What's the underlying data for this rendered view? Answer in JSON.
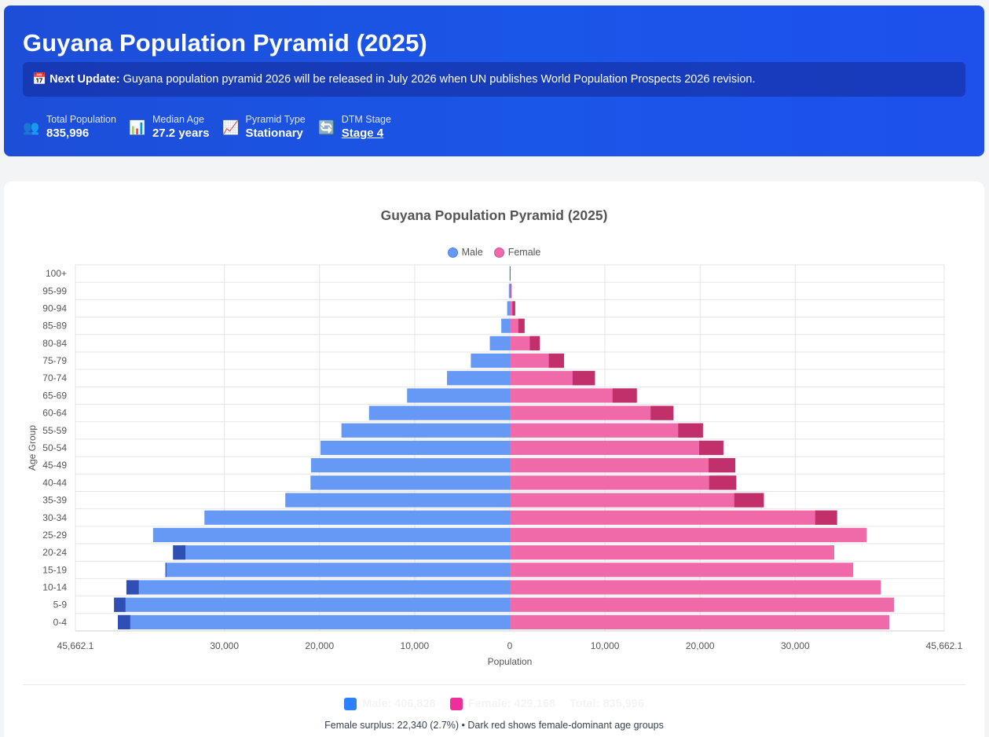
{
  "header": {
    "title": "Guyana Population Pyramid (2025)",
    "notice_icon": "📅",
    "notice_label": "Next Update:",
    "notice_text": "Guyana population pyramid 2026 will be released in July 2026 when UN publishes World Population Prospects 2026 revision.",
    "stats": [
      {
        "icon": "👥",
        "icon_name": "people-icon",
        "label": "Total Population",
        "value": "835,996"
      },
      {
        "icon": "📊",
        "icon_name": "bar-chart-icon",
        "label": "Median Age",
        "value": "27.2 years"
      },
      {
        "icon": "📈",
        "icon_name": "trend-chart-icon",
        "label": "Pyramid Type",
        "value": "Stationary"
      },
      {
        "icon": "🔄",
        "icon_name": "cycle-icon",
        "label": "DTM Stage",
        "value": "Stage 4"
      }
    ]
  },
  "chart_data": {
    "type": "bar",
    "orientation": "horizontal-pyramid",
    "title": "Guyana Population Pyramid (2025)",
    "xlabel": "Population",
    "ylabel": "Age Group",
    "xlim": [
      -45662.1,
      45662.1
    ],
    "x_ticks": [
      -45662.1,
      -30000,
      -20000,
      -10000,
      0,
      10000,
      20000,
      30000,
      45662.1
    ],
    "x_tick_labels": [
      "45,662.1",
      "30,000",
      "20,000",
      "10,000",
      "0",
      "10,000",
      "20,000",
      "30,000",
      "45,662.1"
    ],
    "categories": [
      "100+",
      "95-99",
      "90-94",
      "85-89",
      "80-84",
      "75-79",
      "70-74",
      "65-69",
      "60-64",
      "55-59",
      "50-54",
      "45-49",
      "40-44",
      "35-39",
      "30-34",
      "25-29",
      "20-24",
      "15-19",
      "10-14",
      "5-9",
      "0-4"
    ],
    "series": [
      {
        "name": "Male",
        "color": "#6699f5",
        "dominant_color": "#2f4fb5",
        "values": [
          20,
          100,
          280,
          900,
          2100,
          4100,
          6600,
          10800,
          14800,
          17700,
          19900,
          20900,
          20950,
          23600,
          32100,
          37500,
          35400,
          36200,
          40300,
          41600,
          41200
        ]
      },
      {
        "name": "Female",
        "color": "#f06aaa",
        "dominant_color": "#c2306c",
        "values": [
          80,
          160,
          560,
          1550,
          3150,
          5700,
          8950,
          13350,
          17200,
          20300,
          22450,
          23700,
          23800,
          26700,
          34400,
          37500,
          34100,
          36100,
          39000,
          40400,
          39900
        ]
      }
    ],
    "legend": [
      "Male",
      "Female"
    ],
    "legend_position": "top"
  },
  "totals": {
    "male": "Male: 406,828",
    "female": "Female: 429,168",
    "total": "Total: 835,996",
    "male_color": "#2b80ff",
    "female_color": "#f02e9a"
  },
  "footnote": "Female surplus: 22,340 (2.7%) • Dark red shows female-dominant age groups"
}
